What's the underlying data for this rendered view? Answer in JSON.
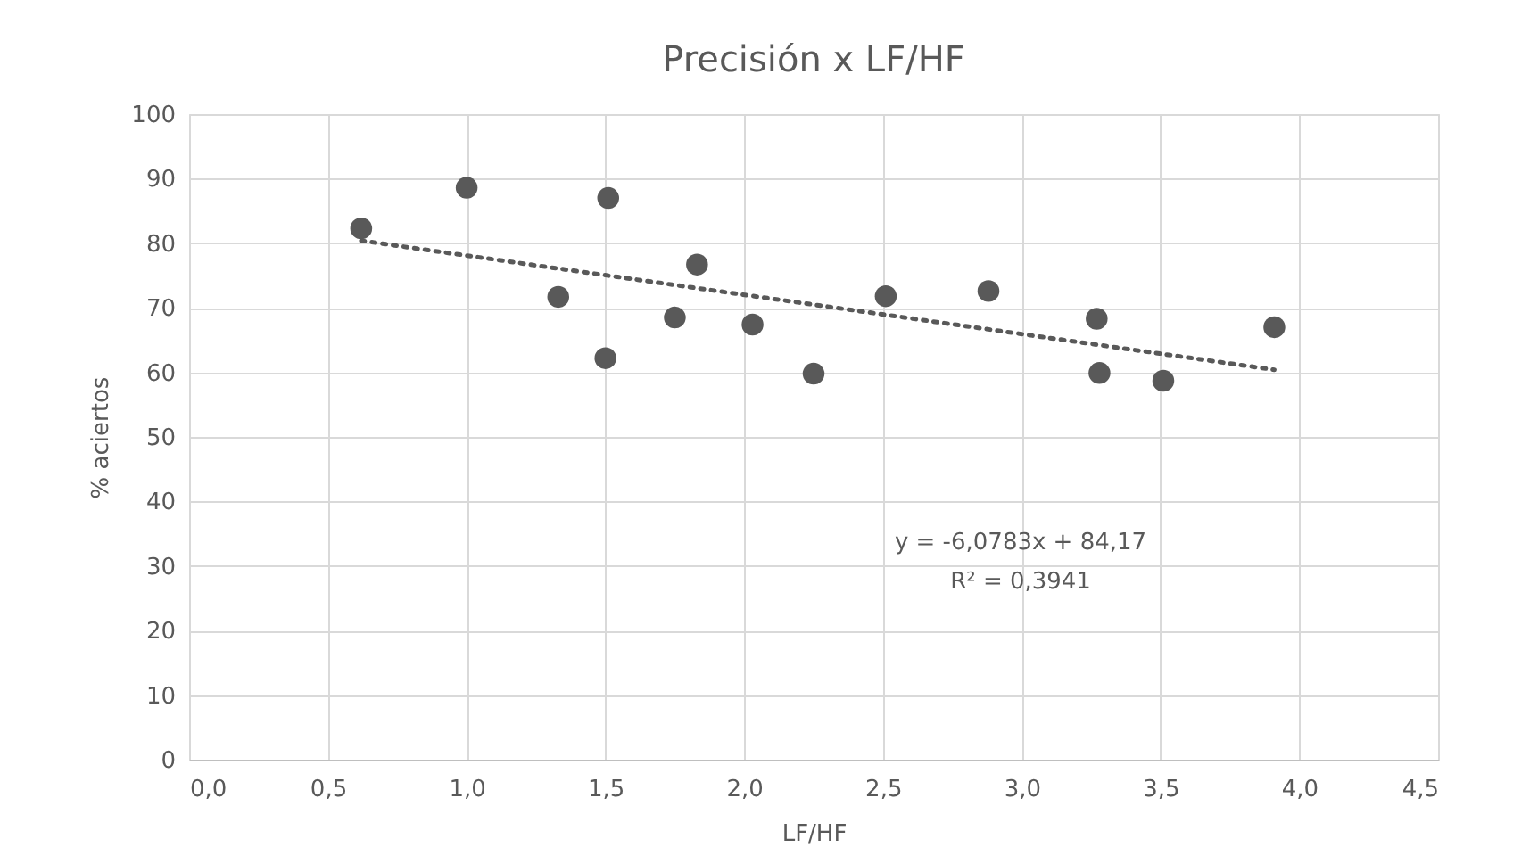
{
  "chart_data": {
    "type": "scatter",
    "title": "Precisión x LF/HF",
    "xlabel": "LF/HF",
    "ylabel": "% aciertos",
    "series": [
      {
        "color": "#595959",
        "marker": "circle",
        "x": [
          0.62,
          1.0,
          1.33,
          1.51,
          1.5,
          1.75,
          1.83,
          2.03,
          2.25,
          2.51,
          2.88,
          3.27,
          3.28,
          3.51,
          3.91
        ],
        "values": [
          82.3,
          88.6,
          71.7,
          87.0,
          62.2,
          68.5,
          76.7,
          67.4,
          59.8,
          71.8,
          72.6,
          68.3,
          59.9,
          58.7,
          67.0
        ]
      },
      {
        "type": "line",
        "color": "#595959",
        "line_style": "dotted",
        "marker": "none",
        "x": [
          0.62,
          3.91
        ],
        "values": [
          80.4,
          60.4
        ]
      }
    ],
    "xlim": [
      0,
      4.5
    ],
    "xticks": [
      {
        "value": 0,
        "label": "0,0"
      },
      {
        "value": 0.5,
        "label": "0,5"
      },
      {
        "value": 1,
        "label": "1,0"
      },
      {
        "value": 1.5,
        "label": "1,5"
      },
      {
        "value": 2,
        "label": "2,0"
      },
      {
        "value": 2.5,
        "label": "2,5"
      },
      {
        "value": 3,
        "label": "3,0"
      },
      {
        "value": 3.5,
        "label": "3,5"
      },
      {
        "value": 4,
        "label": "4,0"
      },
      {
        "value": 4.5,
        "label": "4,5"
      }
    ],
    "ylim": [
      0,
      100
    ],
    "yticks": [
      0,
      10,
      20,
      30,
      40,
      50,
      60,
      70,
      80,
      90,
      100
    ],
    "grid": true,
    "annotations": [
      "y = -6,0783x + 84,17",
      "R² = 0,3941"
    ]
  }
}
